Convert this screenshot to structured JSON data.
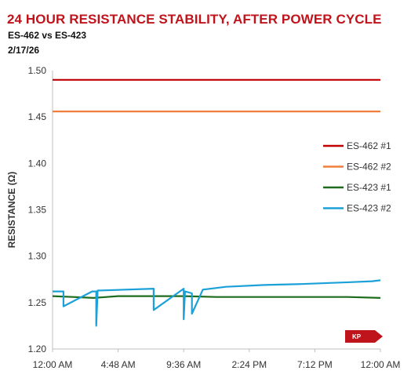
{
  "header": {
    "title": "24 HOUR RESISTANCE STABILITY, AFTER POWER CYCLE",
    "subtitle": "ES-462 vs ES-423",
    "date": "2/17/26"
  },
  "logo": {
    "text": "KP",
    "color": "#c0141c"
  },
  "chart_data": {
    "type": "line",
    "title": "24 HOUR RESISTANCE STABILITY, AFTER POWER CYCLE",
    "xlabel": "",
    "ylabel": "RESISTANCE (Ω)",
    "xlim_hours": [
      0,
      24
    ],
    "ylim": [
      1.2,
      1.5
    ],
    "x_ticks": [
      "12:00 AM",
      "4:48 AM",
      "9:36 AM",
      "2:24 PM",
      "7:12 PM",
      "12:00 AM"
    ],
    "y_ticks": [
      "1.20",
      "1.25",
      "1.30",
      "1.35",
      "1.40",
      "1.45",
      "1.50"
    ],
    "grid": false,
    "legend_position": "right",
    "series": [
      {
        "name": "ES-462 #1",
        "color": "#c00000",
        "x": [
          0,
          3,
          6,
          9.6,
          12,
          18,
          24
        ],
        "y": [
          1.49,
          1.49,
          1.49,
          1.49,
          1.49,
          1.49,
          1.49
        ]
      },
      {
        "name": "ES-462 #2",
        "color": "#f07f3c",
        "x": [
          0,
          6,
          12,
          18,
          24
        ],
        "y": [
          1.456,
          1.456,
          1.456,
          1.456,
          1.456
        ]
      },
      {
        "name": "ES-423 #1",
        "color": "#1e6b1e",
        "x": [
          0,
          1.5,
          3,
          4.8,
          7.2,
          9.6,
          12,
          14.4,
          16.8,
          19.2,
          21.6,
          24
        ],
        "y": [
          1.257,
          1.256,
          1.255,
          1.257,
          1.257,
          1.257,
          1.256,
          1.256,
          1.256,
          1.256,
          1.256,
          1.255
        ]
      },
      {
        "name": "ES-423 #2",
        "color": "#1ba0d8",
        "x": [
          0,
          0.8,
          0.8,
          2.9,
          3.2,
          3.2,
          3.3,
          7.4,
          7.4,
          9.6,
          9.6,
          9.7,
          10.2,
          10.2,
          11,
          12.7,
          15.5,
          18.2,
          21.8,
          23.4,
          24
        ],
        "y": [
          1.262,
          1.262,
          1.246,
          1.262,
          1.262,
          1.225,
          1.263,
          1.265,
          1.242,
          1.265,
          1.232,
          1.262,
          1.26,
          1.238,
          1.264,
          1.267,
          1.269,
          1.27,
          1.272,
          1.273,
          1.274
        ]
      }
    ]
  }
}
